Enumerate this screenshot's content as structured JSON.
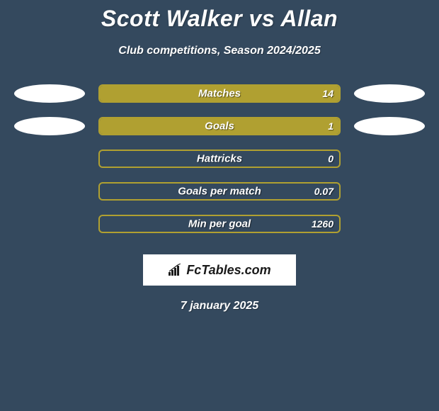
{
  "title": "Scott Walker vs Allan",
  "subtitle": "Club competitions, Season 2024/2025",
  "date": "7 january 2025",
  "logo_text": "FcTables.com",
  "colors": {
    "background": "#34495e",
    "bar_fill": "#b0a031",
    "bar_border": "#b0a031",
    "ellipse": "#ffffff",
    "text": "#ffffff"
  },
  "rows": [
    {
      "label": "Matches",
      "value": "14",
      "fill_pct": 100,
      "show_ellipses": true
    },
    {
      "label": "Goals",
      "value": "1",
      "fill_pct": 100,
      "show_ellipses": true
    },
    {
      "label": "Hattricks",
      "value": "0",
      "fill_pct": 0,
      "show_ellipses": false
    },
    {
      "label": "Goals per match",
      "value": "0.07",
      "fill_pct": 0,
      "show_ellipses": false
    },
    {
      "label": "Min per goal",
      "value": "1260",
      "fill_pct": 0,
      "show_ellipses": false
    }
  ]
}
